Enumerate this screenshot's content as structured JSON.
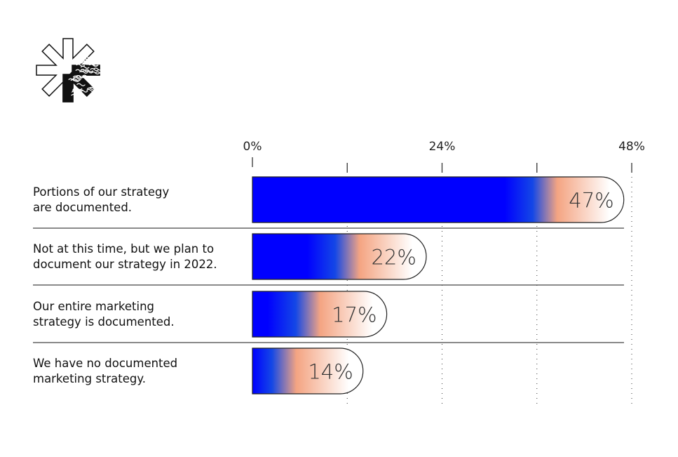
{
  "chart_data": {
    "type": "bar",
    "orientation": "horizontal",
    "categories": [
      [
        "Portions of our strategy",
        "are documented."
      ],
      [
        "Not at this time, but we plan to",
        "document our strategy in 2022."
      ],
      [
        "Our entire marketing",
        "strategy is documented."
      ],
      [
        "We have no documented",
        "marketing strategy."
      ]
    ],
    "values": [
      47,
      22,
      17,
      14
    ],
    "data_labels": [
      "47%",
      "22%",
      "17%",
      "14%"
    ],
    "xlim": [
      0,
      48
    ],
    "x_ticks": [
      0,
      12,
      24,
      36,
      48
    ],
    "x_tick_labels": [
      "0%",
      "24%",
      "48%"
    ],
    "x_tick_label_values": [
      0,
      24,
      48
    ],
    "grid": "vertical dotted",
    "colors": {
      "start": "#0000ff",
      "mid": "#1447e6",
      "accent": "#f4a482",
      "end": "#ffffff",
      "outline": "#222222"
    }
  },
  "logo": {
    "icon": "asterisk-logo-icon"
  }
}
